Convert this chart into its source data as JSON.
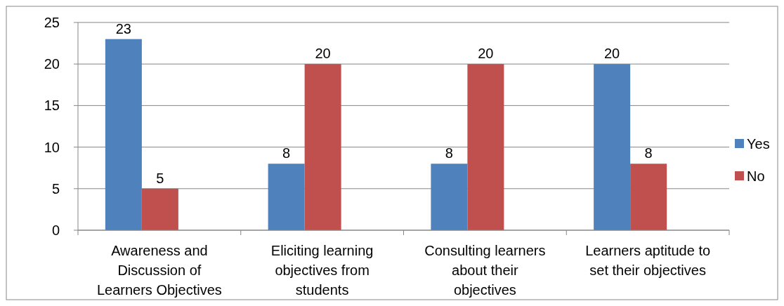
{
  "chart_data": {
    "type": "bar",
    "categories": [
      "Awareness and Discussion of Learners Objectives",
      "Eliciting learning objectives from students",
      "Consulting learners about their objectives",
      "Learners aptitude to set their objectives"
    ],
    "series": [
      {
        "name": "Yes",
        "color": "#4f81bd",
        "values": [
          23,
          8,
          8,
          20
        ]
      },
      {
        "name": "No",
        "color": "#c0504d",
        "values": [
          5,
          20,
          20,
          8
        ]
      }
    ],
    "ylim": [
      0,
      25
    ],
    "yticks": [
      0,
      5,
      10,
      15,
      20,
      25
    ],
    "grid": "y",
    "legend": "right",
    "data_labels": true
  }
}
